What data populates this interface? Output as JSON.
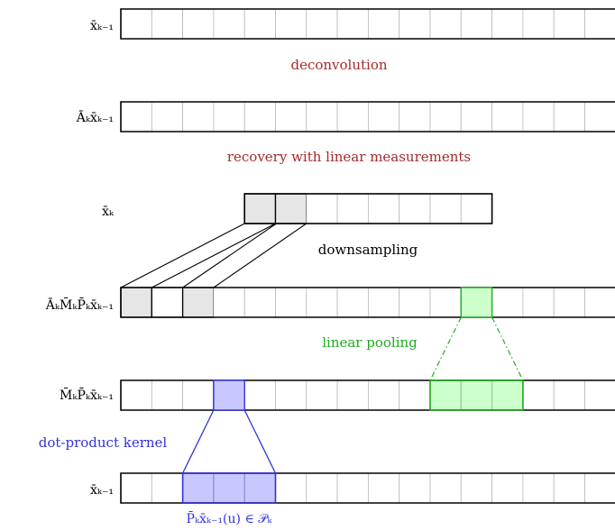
{
  "rows": [
    {
      "label": "x̄",
      "sub": "k−1",
      "pre": "",
      "cells": 16,
      "startCell": 0
    },
    {
      "label": "Ā",
      "sub": "k",
      "pre": "",
      "cells": 16,
      "startCell": 0
    },
    {
      "label": "x̄",
      "sub": "k",
      "pre": "",
      "cells": 8,
      "startCell": 4
    },
    {
      "label": "Ā",
      "sub": "k",
      "pre": "",
      "cells": 16,
      "startCell": 0
    },
    {
      "label": "M̄",
      "sub": "k",
      "pre": "",
      "cells": 16,
      "startCell": 0
    },
    {
      "label": "x̄",
      "sub": "k−1",
      "pre": "",
      "cells": 16,
      "startCell": 0
    }
  ],
  "labels": {
    "row1": "x̄ₖ₋₁",
    "row2": "Āₖx̄ₖ₋₁",
    "row3": "x̄ₖ",
    "row4": "ĀₖM̄ₖP̄ₖx̄ₖ₋₁",
    "row5": "M̄ₖP̄ₖx̄ₖ₋₁",
    "row6": "x̄ₖ₋₁",
    "bottom": "P̄ₖx̄ₖ₋₁(u) ∈ 𝒫ₖ"
  },
  "captions": {
    "deconvolution": "deconvolution",
    "recovery": "recovery with linear measurements",
    "downsampling": "downsampling",
    "pooling": "linear pooling",
    "kernel": "dot-product kernel"
  },
  "colors": {
    "red": "#a52a2a",
    "green": "#22aa22",
    "greenFill": "#ccffcc",
    "blue": "#3333dd",
    "blueFill": "#c8c8ff",
    "gray": "#e6e6e6"
  }
}
